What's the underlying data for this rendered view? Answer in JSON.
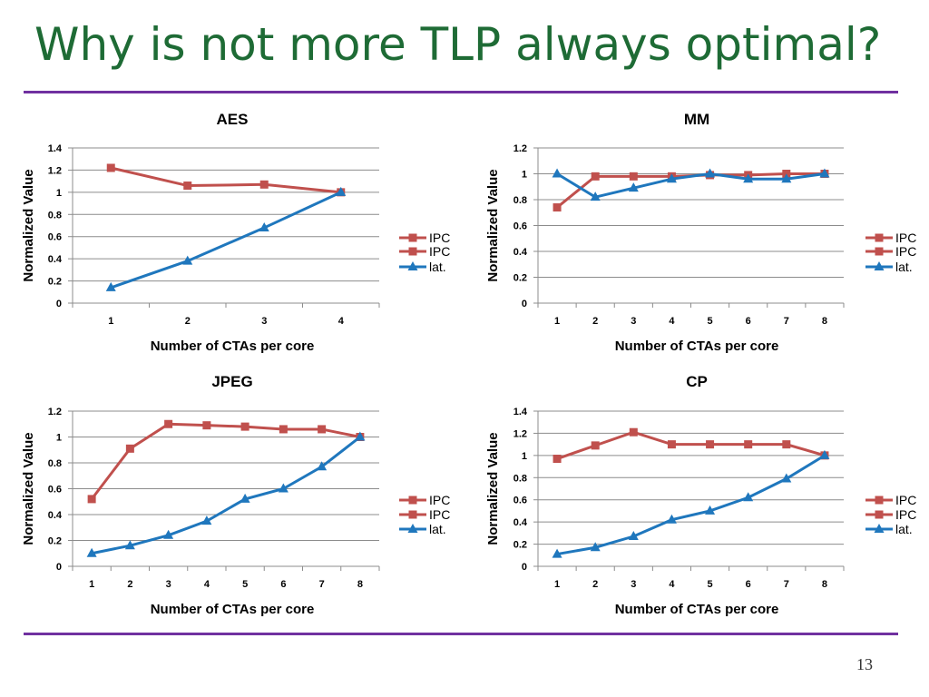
{
  "slide": {
    "title": "Why is not more TLP always optimal?",
    "page_number": "13",
    "accent_color": "#7030a0",
    "title_color": "#1e6b35"
  },
  "colors": {
    "ipc": "#c0504d",
    "lat": "#1f77bd",
    "grid": "#8c8c8c"
  },
  "chart_data": [
    {
      "type": "line",
      "title": "AES",
      "xlabel": "Number of CTAs per core",
      "ylabel": "Normalized Value",
      "categories": [
        "1",
        "2",
        "3",
        "4"
      ],
      "ylim": [
        0,
        1.4
      ],
      "yticks": [
        "0",
        "0.2",
        "0.4",
        "0.6",
        "0.8",
        "1",
        "1.2",
        "1.4"
      ],
      "legend_labels": [
        "IPC",
        "IPC",
        "lat."
      ],
      "series": [
        {
          "name": "IPC",
          "marker": "square",
          "values": [
            1.22,
            1.06,
            1.07,
            1.0
          ]
        },
        {
          "name": "lat.",
          "marker": "triangle",
          "values": [
            0.14,
            0.38,
            0.68,
            1.0
          ]
        }
      ]
    },
    {
      "type": "line",
      "title": "MM",
      "xlabel": "Number of CTAs per core",
      "ylabel": "Normalized Value",
      "categories": [
        "1",
        "2",
        "3",
        "4",
        "5",
        "6",
        "7",
        "8"
      ],
      "ylim": [
        0,
        1.2
      ],
      "yticks": [
        "0",
        "0.2",
        "0.4",
        "0.6",
        "0.8",
        "1",
        "1.2"
      ],
      "legend_labels": [
        "IPC",
        "IPC",
        "lat."
      ],
      "series": [
        {
          "name": "IPC",
          "marker": "square",
          "values": [
            0.74,
            0.98,
            0.98,
            0.98,
            0.99,
            0.99,
            1.0,
            1.0
          ]
        },
        {
          "name": "lat.",
          "marker": "triangle",
          "values": [
            1.0,
            0.82,
            0.89,
            0.96,
            1.0,
            0.96,
            0.96,
            1.0
          ]
        }
      ]
    },
    {
      "type": "line",
      "title": "JPEG",
      "xlabel": "Number of CTAs per core",
      "ylabel": "Normalized Value",
      "categories": [
        "1",
        "2",
        "3",
        "4",
        "5",
        "6",
        "7",
        "8"
      ],
      "ylim": [
        0,
        1.2
      ],
      "yticks": [
        "0",
        "0.2",
        "0.4",
        "0.6",
        "0.8",
        "1",
        "1.2"
      ],
      "legend_labels": [
        "IPC",
        "IPC",
        "lat."
      ],
      "series": [
        {
          "name": "IPC",
          "marker": "square",
          "values": [
            0.52,
            0.91,
            1.1,
            1.09,
            1.08,
            1.06,
            1.06,
            1.0
          ]
        },
        {
          "name": "lat.",
          "marker": "triangle",
          "values": [
            0.1,
            0.16,
            0.24,
            0.35,
            0.52,
            0.6,
            0.77,
            1.0
          ]
        }
      ]
    },
    {
      "type": "line",
      "title": "CP",
      "xlabel": "Number of CTAs per core",
      "ylabel": "Normalized Value",
      "categories": [
        "1",
        "2",
        "3",
        "4",
        "5",
        "6",
        "7",
        "8"
      ],
      "ylim": [
        0,
        1.4
      ],
      "yticks": [
        "0",
        "0.2",
        "0.4",
        "0.6",
        "0.8",
        "1",
        "1.2",
        "1.4"
      ],
      "legend_labels": [
        "IPC",
        "IPC",
        "lat."
      ],
      "series": [
        {
          "name": "IPC",
          "marker": "square",
          "values": [
            0.97,
            1.09,
            1.21,
            1.1,
            1.1,
            1.1,
            1.1,
            1.0
          ]
        },
        {
          "name": "lat.",
          "marker": "triangle",
          "values": [
            0.11,
            0.17,
            0.27,
            0.42,
            0.5,
            0.62,
            0.79,
            1.0
          ]
        }
      ]
    }
  ]
}
